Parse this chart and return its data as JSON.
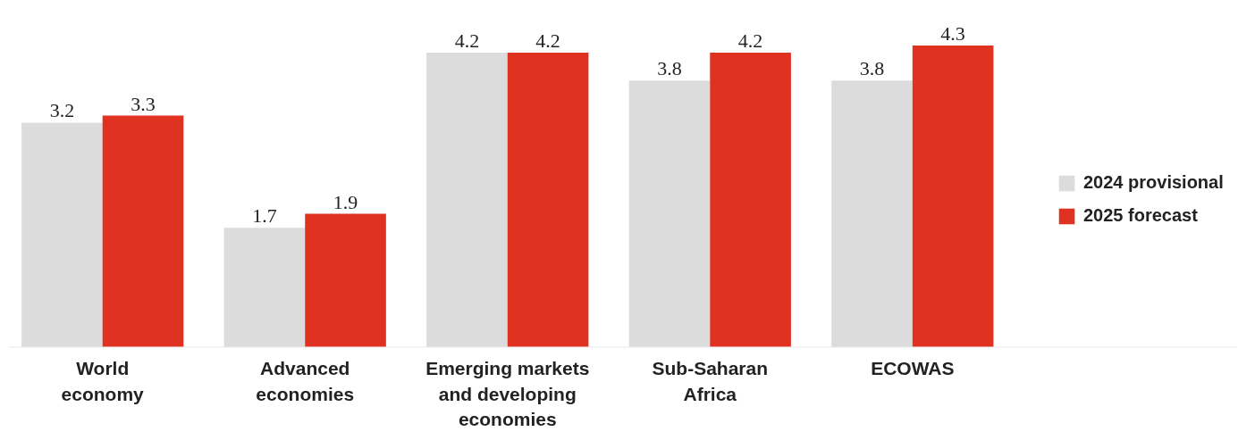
{
  "chart_data": {
    "type": "bar",
    "categories": [
      "World\neconomy",
      "Advanced\neconomies",
      "Emerging markets\nand developing\neconomies",
      "Sub-Saharan\nAfrica",
      "ECOWAS"
    ],
    "series": [
      {
        "name": "2024 provisional",
        "color": "#dcdcdc",
        "values": [
          3.2,
          1.7,
          4.2,
          3.8,
          3.8
        ]
      },
      {
        "name": "2025 forecast",
        "color": "#e03220",
        "values": [
          3.3,
          1.9,
          4.2,
          4.2,
          4.3
        ]
      }
    ],
    "data_labels": true,
    "grid": false,
    "legend": "right"
  }
}
